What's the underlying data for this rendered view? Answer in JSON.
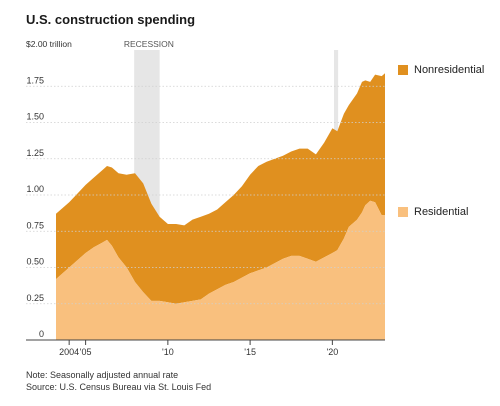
{
  "chart_data": {
    "type": "area",
    "stacked": true,
    "title": "U.S. construction spending",
    "y_unit_label": "$2.00 trillion",
    "y_ticks": [
      {
        "value": 0,
        "label": "0"
      },
      {
        "value": 0.25,
        "label": "0.25"
      },
      {
        "value": 0.5,
        "label": "0.50"
      },
      {
        "value": 0.75,
        "label": "0.75"
      },
      {
        "value": 1.0,
        "label": "1.00"
      },
      {
        "value": 1.25,
        "label": "1.25"
      },
      {
        "value": 1.5,
        "label": "1.50"
      },
      {
        "value": 1.75,
        "label": "1.75"
      }
    ],
    "ylim": [
      0,
      2.0
    ],
    "xlim": [
      2003.2,
      2023.2
    ],
    "x_ticks": [
      {
        "value": 2004,
        "label": "2004"
      },
      {
        "value": 2005,
        "label": "'05"
      },
      {
        "value": 2010,
        "label": "'10"
      },
      {
        "value": 2015,
        "label": "'15"
      },
      {
        "value": 2020,
        "label": "'20"
      }
    ],
    "recession_label": "RECESSION",
    "recessions": [
      {
        "start": 2007.95,
        "end": 2009.5
      },
      {
        "start": 2020.1,
        "end": 2020.35
      }
    ],
    "grid": true,
    "x": [
      2003.2,
      2004,
      2004.5,
      2005,
      2005.5,
      2006,
      2006.3,
      2006.6,
      2007,
      2007.5,
      2008,
      2008.5,
      2009,
      2009.5,
      2010,
      2010.5,
      2011,
      2011.5,
      2012,
      2012.5,
      2013,
      2013.5,
      2014,
      2014.5,
      2015,
      2015.5,
      2016,
      2016.5,
      2017,
      2017.5,
      2018,
      2018.5,
      2019,
      2019.5,
      2020,
      2020.3,
      2020.7,
      2021,
      2021.5,
      2021.8,
      2022,
      2022.3,
      2022.6,
      2023,
      2023.2
    ],
    "series": [
      {
        "name": "Residential",
        "color": "#f9c07e",
        "values": [
          0.42,
          0.5,
          0.55,
          0.6,
          0.64,
          0.67,
          0.69,
          0.65,
          0.57,
          0.5,
          0.4,
          0.33,
          0.27,
          0.27,
          0.26,
          0.25,
          0.26,
          0.27,
          0.28,
          0.32,
          0.35,
          0.38,
          0.4,
          0.43,
          0.46,
          0.48,
          0.5,
          0.53,
          0.56,
          0.58,
          0.58,
          0.56,
          0.54,
          0.57,
          0.6,
          0.62,
          0.7,
          0.78,
          0.83,
          0.88,
          0.93,
          0.96,
          0.95,
          0.86,
          0.86
        ]
      },
      {
        "name": "Nonresidential",
        "color": "#e0901f",
        "values": [
          0.45,
          0.45,
          0.46,
          0.47,
          0.48,
          0.5,
          0.51,
          0.54,
          0.58,
          0.64,
          0.75,
          0.75,
          0.67,
          0.58,
          0.54,
          0.55,
          0.53,
          0.56,
          0.57,
          0.55,
          0.55,
          0.57,
          0.6,
          0.63,
          0.68,
          0.72,
          0.73,
          0.72,
          0.71,
          0.72,
          0.74,
          0.76,
          0.74,
          0.79,
          0.86,
          0.82,
          0.86,
          0.84,
          0.87,
          0.9,
          0.86,
          0.82,
          0.88,
          0.96,
          0.98
        ]
      }
    ]
  },
  "note": "Note: Seasonally adjusted annual rate",
  "source": "Source: U.S. Census Bureau via St. Louis Fed"
}
